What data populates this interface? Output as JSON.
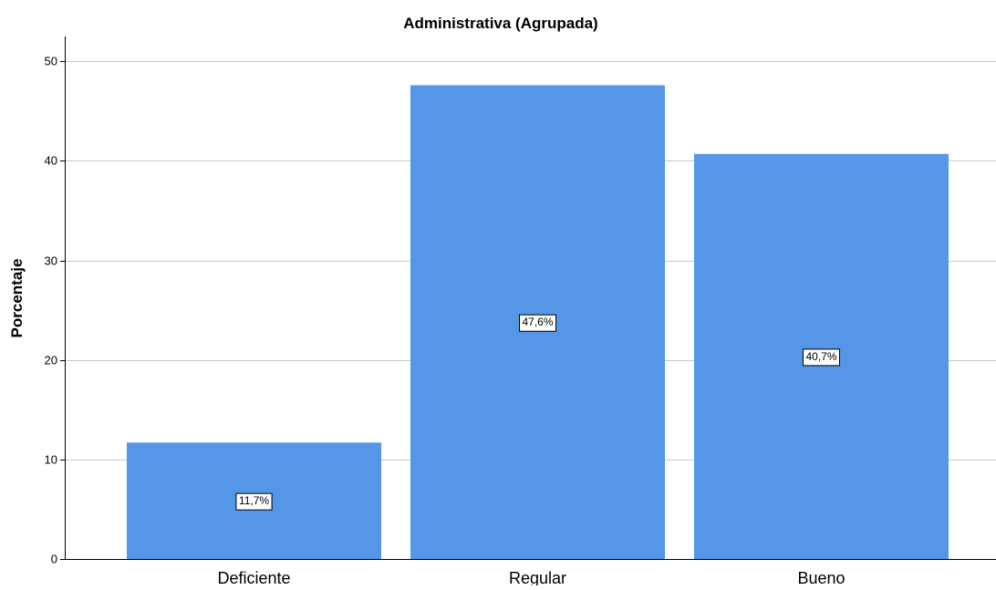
{
  "chart_data": {
    "type": "bar",
    "title": "Administrativa (Agrupada)",
    "xlabel": "",
    "ylabel": "Porcentaje",
    "categories": [
      "Deficiente",
      "Regular",
      "Bueno"
    ],
    "values": [
      11.7,
      47.6,
      40.7
    ],
    "data_labels": [
      "11,7%",
      "47,6%",
      "40,7%"
    ],
    "ylim": [
      0,
      52.5
    ],
    "yticks": [
      0,
      10,
      20,
      30,
      40,
      50
    ],
    "grid": true,
    "bar_color": "#5596e6",
    "gridline_color": "#c8c8c8"
  }
}
